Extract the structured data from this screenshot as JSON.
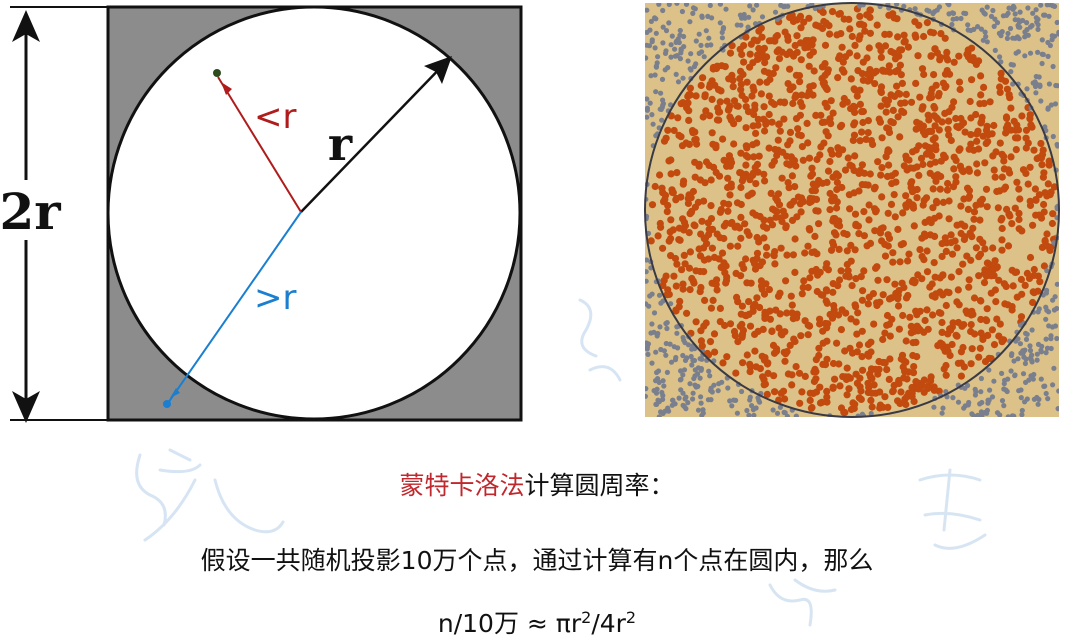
{
  "diagram": {
    "square_label": "2r",
    "radius_label": "r",
    "inside_label": "<r",
    "outside_label": ">r"
  },
  "caption": {
    "line1_highlight": "蒙特卡洛法",
    "line1_rest": "计算圆周率：",
    "line2": "假设一共随机投影10万个点，通过计算有n个点在圆内，那么",
    "line3_a": "n/10万 ≈ πr",
    "line3_sup1": "2",
    "line3_b": "/4r",
    "line3_sup2": "2"
  },
  "colors": {
    "square_fill": "#8c8c8c",
    "inside_arrow": "#b01c1c",
    "outside_arrow": "#1a7fd0",
    "sand": "#dcc289",
    "dot_inside": "#c24a0e",
    "dot_outside": "#7a7f8e",
    "highlight": "#c0282d"
  }
}
